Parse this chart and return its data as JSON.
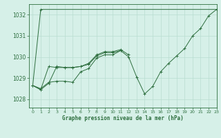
{
  "title": "Graphe pression niveau de la mer (hPa)",
  "bg_color": "#d6f0e8",
  "grid_color": "#b8ddd0",
  "line_color": "#2d6e3e",
  "xlim": [
    -0.5,
    23
  ],
  "ylim": [
    1027.6,
    1032.5
  ],
  "yticks": [
    1028,
    1029,
    1030,
    1031,
    1032
  ],
  "xticks": [
    0,
    1,
    2,
    3,
    4,
    5,
    6,
    7,
    8,
    9,
    10,
    11,
    12,
    13,
    14,
    15,
    16,
    17,
    18,
    19,
    20,
    21,
    22,
    23
  ],
  "series": [
    [
      1028.65,
      1028.5,
      1028.8,
      1028.85,
      1028.85,
      1028.8,
      1029.3,
      1029.45,
      1029.95,
      1030.1,
      1030.1,
      1030.3,
      1030.0,
      1029.05,
      1028.25,
      1028.6,
      1029.3,
      1029.7,
      1030.05,
      1030.4,
      1031.0,
      1031.35,
      1031.95,
      1032.25
    ],
    [
      1028.65,
      1028.45,
      1029.55,
      1029.5,
      1029.5,
      1029.5,
      1029.55,
      1029.7,
      1030.1,
      1030.25,
      1030.25,
      1030.35,
      1030.1,
      null,
      null,
      null,
      null,
      null,
      null,
      null,
      null,
      null,
      null,
      null
    ],
    [
      1028.65,
      1028.45,
      1028.75,
      1029.55,
      1029.5,
      1029.5,
      1029.55,
      1029.65,
      1030.05,
      1030.2,
      1030.2,
      1030.3,
      null,
      null,
      null,
      null,
      null,
      null,
      null,
      null,
      null,
      null,
      null,
      null
    ],
    [
      1028.65,
      1032.25,
      null,
      null,
      null,
      null,
      null,
      null,
      null,
      null,
      null,
      null,
      null,
      null,
      null,
      null,
      null,
      null,
      null,
      null,
      null,
      null,
      null,
      1032.25
    ]
  ]
}
